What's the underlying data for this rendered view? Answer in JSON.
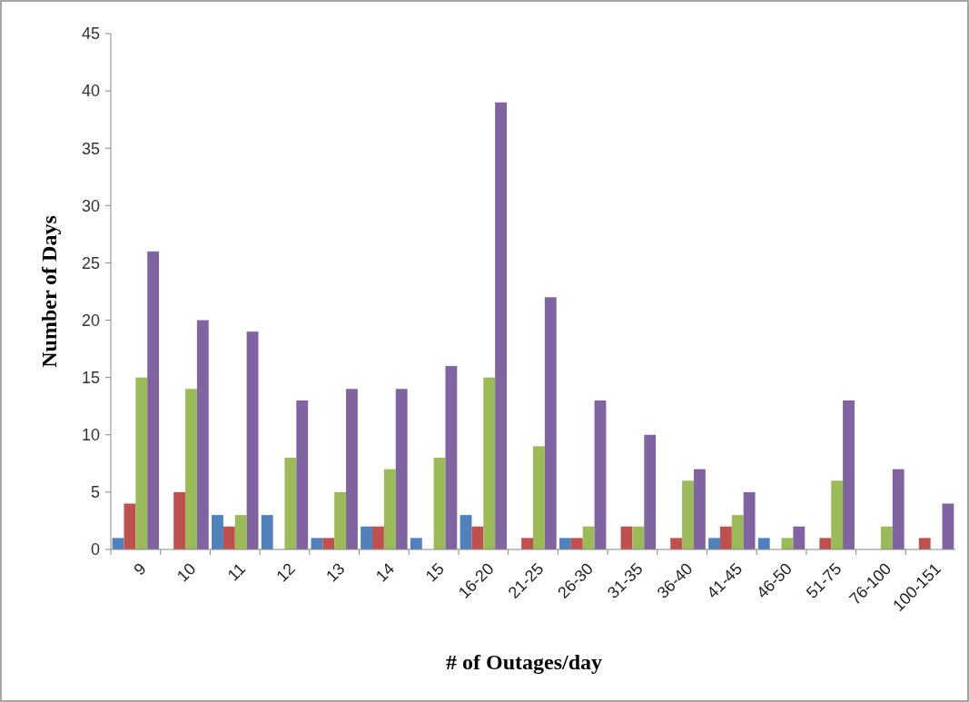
{
  "chart_data": {
    "type": "bar",
    "xlabel": "# of Outages/day",
    "ylabel": "Number of Days",
    "categories": [
      "9",
      "10",
      "11",
      "12",
      "13",
      "14",
      "15",
      "16-20",
      "21-25",
      "26-30",
      "31-35",
      "36-40",
      "41-45",
      "46-50",
      "51-75",
      "76-100",
      "100-151"
    ],
    "series": [
      {
        "color": "#4f81bd",
        "values": [
          1,
          0,
          3,
          3,
          1,
          2,
          1,
          3,
          0,
          1,
          0,
          0,
          1,
          1,
          0,
          0,
          0
        ]
      },
      {
        "color": "#c0504d",
        "values": [
          4,
          5,
          2,
          0,
          1,
          2,
          0,
          2,
          1,
          1,
          2,
          1,
          2,
          0,
          1,
          0,
          1
        ]
      },
      {
        "color": "#9bbb59",
        "values": [
          15,
          14,
          3,
          8,
          5,
          7,
          8,
          15,
          9,
          2,
          2,
          6,
          3,
          1,
          6,
          2,
          0
        ]
      },
      {
        "color": "#8064a2",
        "values": [
          26,
          20,
          19,
          13,
          14,
          14,
          16,
          39,
          22,
          13,
          10,
          7,
          5,
          2,
          13,
          7,
          4
        ]
      }
    ],
    "ylim": [
      0,
      45
    ],
    "yticks": [
      0,
      5,
      10,
      15,
      20,
      25,
      30,
      35,
      40,
      45
    ],
    "grid": false
  }
}
